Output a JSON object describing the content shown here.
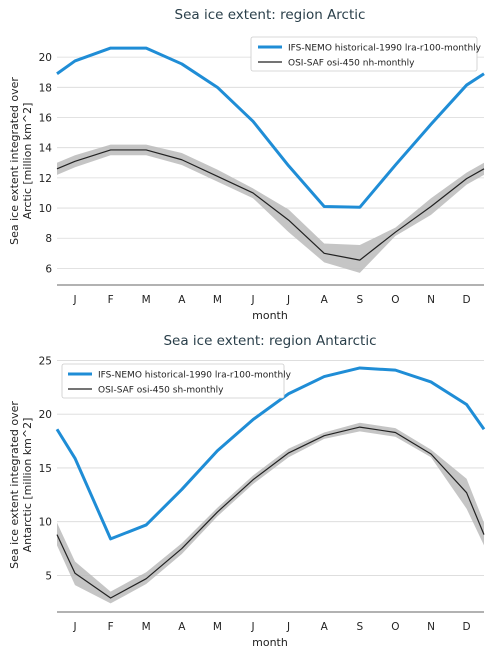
{
  "chart_data": [
    {
      "type": "line",
      "title": "Sea ice extent: region Arctic",
      "xlabel": "month",
      "ylabel_line1": "Sea ice extent integrated over",
      "ylabel_line2": "Arctic [million km^2]",
      "categories": [
        "J",
        "F",
        "M",
        "A",
        "M",
        "J",
        "J",
        "A",
        "S",
        "O",
        "N",
        "D"
      ],
      "ylim": [
        4.9,
        21.6
      ],
      "yticks": [
        6,
        8,
        10,
        12,
        14,
        16,
        18,
        20
      ],
      "grid": "horizontal",
      "legend_position": "top-right",
      "series": [
        {
          "name": "IFS-NEMO historical-1990 lra-r100-monthly",
          "color": "#1f8dd6",
          "values": [
            19.75,
            20.6,
            20.6,
            19.55,
            18.0,
            15.75,
            12.8,
            10.1,
            10.05,
            12.85,
            15.55,
            18.15
          ],
          "edge_left": 18.9,
          "edge_right": 18.9
        },
        {
          "name": "OSI-SAF osi-450 nh-monthly",
          "color": "#222222",
          "band_color": "#bbbbbb",
          "values": [
            13.1,
            13.85,
            13.85,
            13.2,
            12.1,
            11.0,
            9.2,
            7.0,
            6.55,
            8.4,
            10.1,
            11.95
          ],
          "lower": [
            12.7,
            13.5,
            13.5,
            12.85,
            11.75,
            10.65,
            8.4,
            6.4,
            5.7,
            8.15,
            9.55,
            11.55
          ],
          "upper": [
            13.5,
            14.2,
            14.2,
            13.65,
            12.55,
            11.3,
            9.9,
            7.65,
            7.55,
            8.7,
            10.65,
            12.35
          ],
          "edge_left": 12.6,
          "edge_right": 12.6,
          "edge_left_band": [
            12.2,
            13.0
          ],
          "edge_right_band": [
            12.2,
            13.0
          ]
        }
      ]
    },
    {
      "type": "line",
      "title": "Sea ice extent: region Antarctic",
      "xlabel": "month",
      "ylabel_line1": "Sea ice extent integrated over",
      "ylabel_line2": "Antarctic [million km^2]",
      "categories": [
        "J",
        "F",
        "M",
        "A",
        "M",
        "J",
        "J",
        "A",
        "S",
        "O",
        "N",
        "D"
      ],
      "ylim": [
        1.6,
        25.6
      ],
      "yticks": [
        5,
        10,
        15,
        20,
        25
      ],
      "grid": "horizontal",
      "legend_position": "top-left",
      "series": [
        {
          "name": "IFS-NEMO historical-1990 lra-r100-monthly",
          "color": "#1f8dd6",
          "values": [
            15.9,
            8.4,
            9.7,
            13.0,
            16.6,
            19.5,
            21.9,
            23.5,
            24.3,
            24.1,
            23.0,
            20.9
          ],
          "edge_left": 18.6,
          "edge_right": 18.6
        },
        {
          "name": "OSI-SAF osi-450 sh-monthly",
          "color": "#222222",
          "band_color": "#bbbbbb",
          "values": [
            5.2,
            2.9,
            4.7,
            7.5,
            10.9,
            13.9,
            16.4,
            18.0,
            18.8,
            18.3,
            16.3,
            12.7
          ],
          "lower": [
            4.1,
            2.4,
            4.2,
            7.0,
            10.5,
            13.5,
            16.0,
            17.7,
            18.4,
            17.9,
            16.0,
            11.2
          ],
          "upper": [
            6.3,
            3.5,
            5.3,
            8.0,
            11.3,
            14.3,
            16.8,
            18.3,
            19.2,
            18.7,
            16.7,
            14.0
          ],
          "edge_left": 8.8,
          "edge_right": 8.8,
          "edge_left_band": [
            7.8,
            9.9
          ],
          "edge_right_band": [
            7.8,
            9.9
          ]
        }
      ]
    }
  ]
}
